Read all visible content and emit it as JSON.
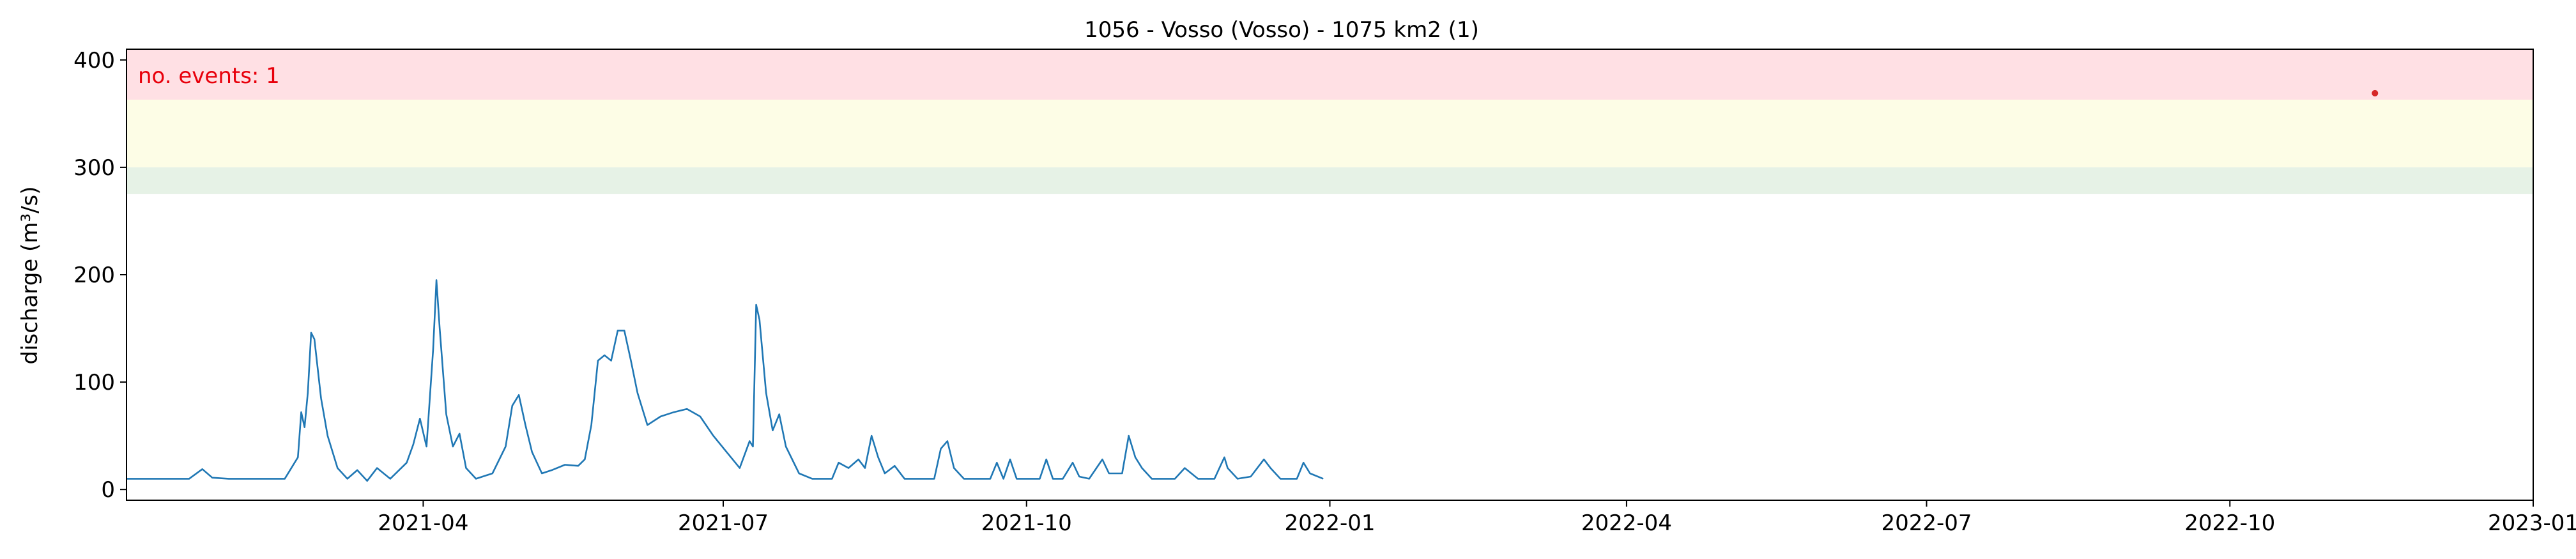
{
  "chart_data": {
    "type": "line",
    "title": "1056 - Vosso (Vosso) - 1075 km2 (1)",
    "xlabel": "",
    "ylabel": "discharge (m³/s)",
    "xlim": [
      "2021-01-01",
      "2023-01-01"
    ],
    "ylim": [
      -10,
      410
    ],
    "grid": false,
    "y_ticks": [
      0,
      100,
      200,
      300,
      400
    ],
    "x_ticks": [
      "2021-04",
      "2021-07",
      "2021-10",
      "2022-01",
      "2022-04",
      "2022-07",
      "2022-10",
      "2023-01"
    ],
    "threshold_bands": [
      {
        "from": 275,
        "to": 300,
        "color": "#e6f2e6"
      },
      {
        "from": 300,
        "to": 363,
        "color": "#fdfde6"
      },
      {
        "from": 363,
        "to": 410,
        "color": "#ffe0e4"
      }
    ],
    "annotation": {
      "text": "no. events: 1",
      "color": "#e8000b"
    },
    "events": [
      {
        "x": "2022-11-14",
        "y": 369,
        "color": "#d62728"
      }
    ],
    "series": [
      {
        "color": "#1f77b4",
        "points": [
          [
            "2021-01-01",
            10
          ],
          [
            "2021-01-20",
            10
          ],
          [
            "2021-01-24",
            19
          ],
          [
            "2021-01-27",
            11
          ],
          [
            "2021-02-01",
            10
          ],
          [
            "2021-02-18",
            10
          ],
          [
            "2021-02-22",
            30
          ],
          [
            "2021-02-23",
            72
          ],
          [
            "2021-02-24",
            58
          ],
          [
            "2021-02-25",
            90
          ],
          [
            "2021-02-26",
            146
          ],
          [
            "2021-02-27",
            140
          ],
          [
            "2021-03-01",
            85
          ],
          [
            "2021-03-03",
            50
          ],
          [
            "2021-03-06",
            20
          ],
          [
            "2021-03-09",
            10
          ],
          [
            "2021-03-12",
            18
          ],
          [
            "2021-03-15",
            8
          ],
          [
            "2021-03-18",
            20
          ],
          [
            "2021-03-22",
            10
          ],
          [
            "2021-03-27",
            25
          ],
          [
            "2021-03-29",
            42
          ],
          [
            "2021-03-31",
            66
          ],
          [
            "2021-04-02",
            40
          ],
          [
            "2021-04-04",
            130
          ],
          [
            "2021-04-05",
            195
          ],
          [
            "2021-04-06",
            150
          ],
          [
            "2021-04-08",
            70
          ],
          [
            "2021-04-10",
            40
          ],
          [
            "2021-04-12",
            52
          ],
          [
            "2021-04-14",
            20
          ],
          [
            "2021-04-17",
            10
          ],
          [
            "2021-04-22",
            15
          ],
          [
            "2021-04-26",
            40
          ],
          [
            "2021-04-28",
            78
          ],
          [
            "2021-04-30",
            88
          ],
          [
            "2021-05-02",
            60
          ],
          [
            "2021-05-04",
            35
          ],
          [
            "2021-05-07",
            15
          ],
          [
            "2021-05-10",
            18
          ],
          [
            "2021-05-14",
            23
          ],
          [
            "2021-05-18",
            22
          ],
          [
            "2021-05-20",
            28
          ],
          [
            "2021-05-22",
            60
          ],
          [
            "2021-05-24",
            120
          ],
          [
            "2021-05-26",
            125
          ],
          [
            "2021-05-28",
            120
          ],
          [
            "2021-05-30",
            148
          ],
          [
            "2021-06-01",
            148
          ],
          [
            "2021-06-03",
            120
          ],
          [
            "2021-06-05",
            90
          ],
          [
            "2021-06-08",
            60
          ],
          [
            "2021-06-12",
            68
          ],
          [
            "2021-06-16",
            72
          ],
          [
            "2021-06-20",
            75
          ],
          [
            "2021-06-24",
            68
          ],
          [
            "2021-06-28",
            50
          ],
          [
            "2021-07-02",
            35
          ],
          [
            "2021-07-06",
            20
          ],
          [
            "2021-07-09",
            45
          ],
          [
            "2021-07-10",
            40
          ],
          [
            "2021-07-11",
            172
          ],
          [
            "2021-07-12",
            158
          ],
          [
            "2021-07-14",
            90
          ],
          [
            "2021-07-16",
            55
          ],
          [
            "2021-07-18",
            70
          ],
          [
            "2021-07-20",
            40
          ],
          [
            "2021-07-24",
            15
          ],
          [
            "2021-07-28",
            10
          ],
          [
            "2021-08-03",
            10
          ],
          [
            "2021-08-05",
            25
          ],
          [
            "2021-08-08",
            20
          ],
          [
            "2021-08-11",
            28
          ],
          [
            "2021-08-13",
            20
          ],
          [
            "2021-08-15",
            50
          ],
          [
            "2021-08-17",
            30
          ],
          [
            "2021-08-19",
            15
          ],
          [
            "2021-08-22",
            22
          ],
          [
            "2021-08-25",
            10
          ],
          [
            "2021-09-03",
            10
          ],
          [
            "2021-09-05",
            38
          ],
          [
            "2021-09-07",
            45
          ],
          [
            "2021-09-09",
            20
          ],
          [
            "2021-09-12",
            10
          ],
          [
            "2021-09-20",
            10
          ],
          [
            "2021-09-22",
            25
          ],
          [
            "2021-09-24",
            10
          ],
          [
            "2021-09-26",
            28
          ],
          [
            "2021-09-28",
            10
          ],
          [
            "2021-10-05",
            10
          ],
          [
            "2021-10-07",
            28
          ],
          [
            "2021-10-09",
            10
          ],
          [
            "2021-10-12",
            10
          ],
          [
            "2021-10-15",
            25
          ],
          [
            "2021-10-17",
            12
          ],
          [
            "2021-10-20",
            10
          ],
          [
            "2021-10-24",
            28
          ],
          [
            "2021-10-26",
            15
          ],
          [
            "2021-10-30",
            15
          ],
          [
            "2021-11-01",
            50
          ],
          [
            "2021-11-03",
            30
          ],
          [
            "2021-11-05",
            20
          ],
          [
            "2021-11-08",
            10
          ],
          [
            "2021-11-15",
            10
          ],
          [
            "2021-11-18",
            20
          ],
          [
            "2021-11-22",
            10
          ],
          [
            "2021-11-27",
            10
          ],
          [
            "2021-11-30",
            30
          ],
          [
            "2021-12-01",
            20
          ],
          [
            "2021-12-04",
            10
          ],
          [
            "2021-12-08",
            12
          ],
          [
            "2021-12-12",
            28
          ],
          [
            "2021-12-14",
            20
          ],
          [
            "2021-12-17",
            10
          ],
          [
            "2021-12-22",
            10
          ],
          [
            "2021-12-24",
            25
          ],
          [
            "2021-12-26",
            15
          ],
          [
            "2021-12-30",
            10
          ]
        ]
      }
    ]
  }
}
